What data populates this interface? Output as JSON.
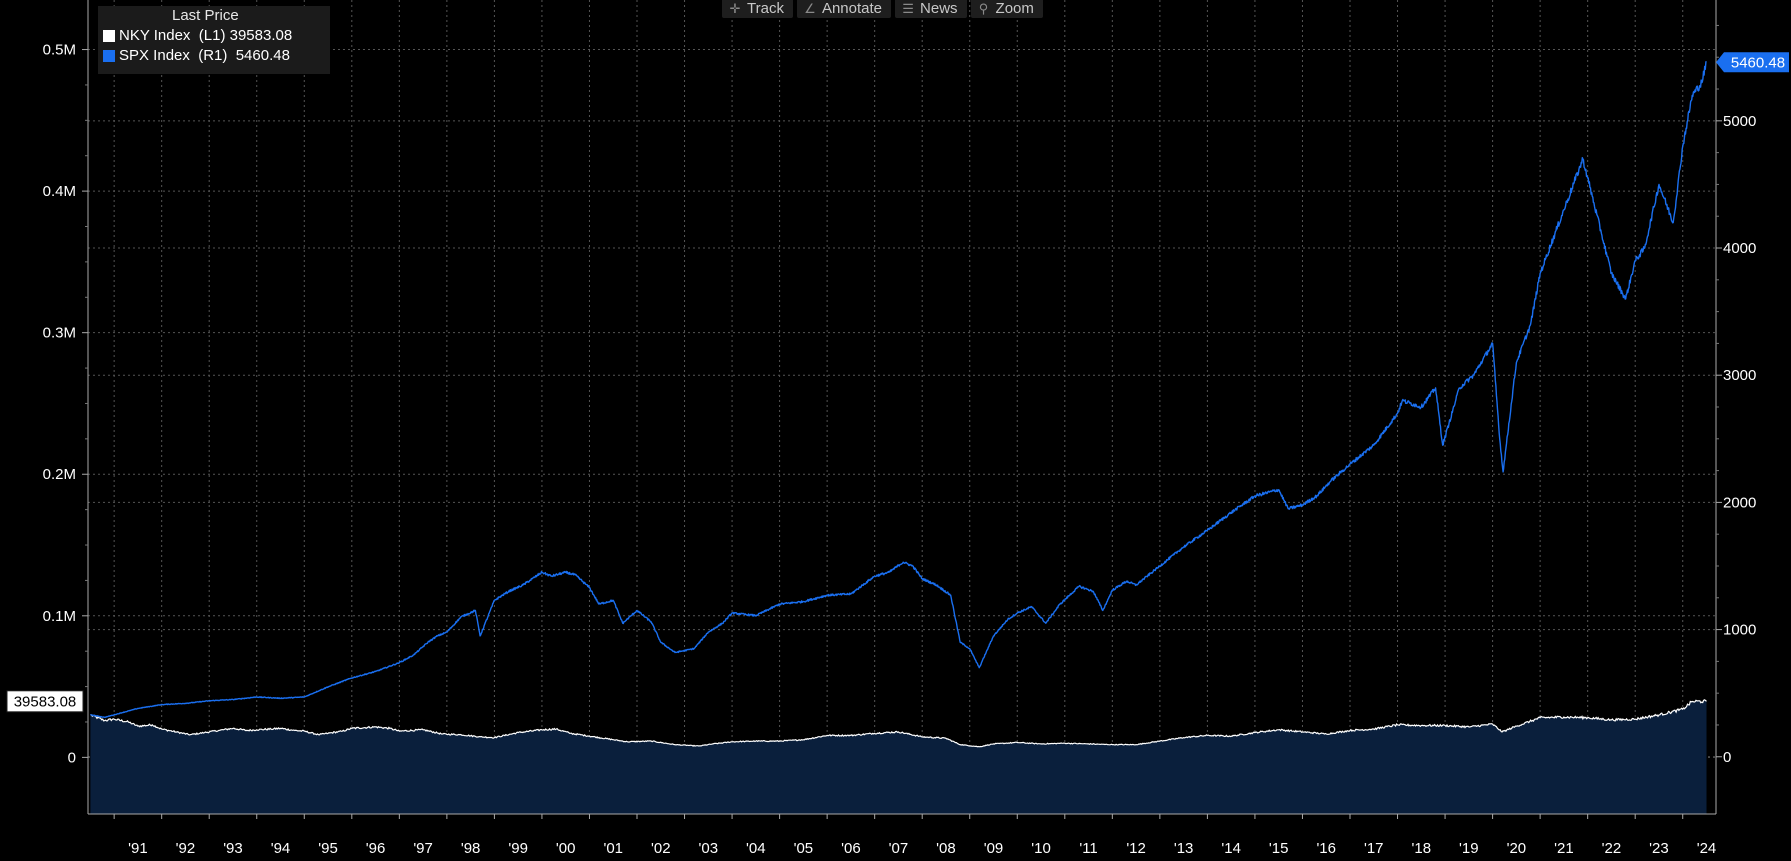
{
  "toolbar": {
    "items": [
      {
        "label": "Track",
        "icon": "crosshair-icon"
      },
      {
        "label": "Annotate",
        "icon": "pencil-icon"
      },
      {
        "label": "News",
        "icon": "news-icon"
      },
      {
        "label": "Zoom",
        "icon": "magnifier-icon"
      }
    ]
  },
  "legend": {
    "title": "Last Price",
    "entries": [
      {
        "label": "NKY Index  (L1) 39583.08",
        "color": "#ffffff"
      },
      {
        "label": "SPX Index  (R1)  5460.48",
        "color": "#1a6ff0"
      }
    ]
  },
  "colors": {
    "background": "#000000",
    "nky_line": "#ffffff",
    "nky_fill": "#0a1f3c",
    "spx_line": "#1a6ff0",
    "grid": "#555555"
  },
  "chart_data": {
    "type": "line",
    "x_axis": {
      "ticks": [
        "'91",
        "'92",
        "'93",
        "'94",
        "'95",
        "'96",
        "'97",
        "'98",
        "'99",
        "'00",
        "'01",
        "'02",
        "'03",
        "'04",
        "'05",
        "'06",
        "'07",
        "'08",
        "'09",
        "'10",
        "'11",
        "'12",
        "'13",
        "'14",
        "'15",
        "'16",
        "'17",
        "'18",
        "'19",
        "'20",
        "'21",
        "'22",
        "'23",
        "'24"
      ],
      "range": [
        1990.45,
        2024.7
      ]
    },
    "left_axis": {
      "ticks": [
        0,
        100000,
        200000,
        300000,
        400000,
        500000
      ],
      "tick_labels": [
        "0",
        "0.1M",
        "0.2M",
        "0.3M",
        "0.4M",
        "0.5M"
      ],
      "range": [
        -40000,
        535000
      ],
      "last_value_label": "39583.08",
      "last_value": 39583.08
    },
    "right_axis": {
      "ticks": [
        0,
        1000,
        2000,
        3000,
        4000,
        5000
      ],
      "tick_labels": [
        "0",
        "1000",
        "2000",
        "3000",
        "4000",
        "5000"
      ],
      "range": [
        -450,
        5950
      ],
      "last_value_label": "5460.48",
      "last_value": 5460.48
    },
    "grid": true,
    "legend_position": "top-left",
    "series": [
      {
        "name": "NKY Index (L1)",
        "axis": "left",
        "style": "area",
        "x": [
          1990.5,
          1990.8,
          1991.0,
          1991.3,
          1991.5,
          1991.8,
          1992.0,
          1992.3,
          1992.6,
          1992.9,
          1993.2,
          1993.5,
          1993.8,
          1994.0,
          1994.3,
          1994.5,
          1994.8,
          1995.0,
          1995.3,
          1995.5,
          1995.8,
          1996.0,
          1996.5,
          1996.8,
          1997.0,
          1997.5,
          1997.9,
          1998.3,
          1998.7,
          1999.0,
          1999.5,
          2000.0,
          2000.3,
          2000.6,
          2001.0,
          2001.5,
          2001.8,
          2002.3,
          2002.8,
          2003.3,
          2003.6,
          2004.0,
          2004.5,
          2005.0,
          2005.5,
          2006.0,
          2006.5,
          2007.0,
          2007.5,
          2008.0,
          2008.5,
          2008.8,
          2009.2,
          2009.5,
          2010.0,
          2010.5,
          2011.0,
          2011.5,
          2012.0,
          2012.5,
          2013.0,
          2013.5,
          2014.0,
          2014.5,
          2015.0,
          2015.5,
          2016.0,
          2016.5,
          2017.0,
          2017.5,
          2018.0,
          2018.5,
          2019.0,
          2019.5,
          2020.0,
          2020.2,
          2020.5,
          2021.0,
          2021.5,
          2022.0,
          2022.5,
          2023.0,
          2023.5,
          2024.0,
          2024.2,
          2024.5
        ],
        "values": [
          30000,
          26000,
          27000,
          25000,
          22000,
          23000,
          20000,
          18000,
          16000,
          17500,
          19000,
          20500,
          19000,
          19500,
          20000,
          20500,
          19000,
          18500,
          16000,
          17000,
          18500,
          20500,
          21500,
          20500,
          18500,
          19500,
          16500,
          16000,
          14500,
          14000,
          17500,
          19500,
          20000,
          17000,
          15000,
          12500,
          11000,
          11500,
          9000,
          8000,
          9500,
          11000,
          11500,
          11500,
          12500,
          15500,
          15500,
          17000,
          18000,
          14500,
          13500,
          9000,
          7500,
          9500,
          10500,
          9500,
          10000,
          9500,
          9000,
          9000,
          11500,
          14000,
          15500,
          15000,
          17500,
          19500,
          18000,
          16500,
          19000,
          20000,
          23000,
          22500,
          22500,
          21500,
          23500,
          18000,
          22000,
          28000,
          28500,
          28000,
          26500,
          27000,
          30000,
          34000,
          39500,
          39583.08
        ]
      },
      {
        "name": "SPX Index (R1)",
        "axis": "right",
        "style": "line",
        "x": [
          1990.5,
          1990.8,
          1991.0,
          1991.5,
          1992.0,
          1992.5,
          1993.0,
          1993.5,
          1994.0,
          1994.5,
          1995.0,
          1995.5,
          1996.0,
          1996.5,
          1997.0,
          1997.3,
          1997.6,
          1997.8,
          1998.0,
          1998.3,
          1998.6,
          1998.7,
          1999.0,
          1999.3,
          1999.6,
          1999.8,
          2000.0,
          2000.2,
          2000.5,
          2000.7,
          2001.0,
          2001.2,
          2001.5,
          2001.7,
          2002.0,
          2002.3,
          2002.5,
          2002.8,
          2003.2,
          2003.5,
          2003.8,
          2004.0,
          2004.5,
          2005.0,
          2005.5,
          2006.0,
          2006.5,
          2007.0,
          2007.3,
          2007.6,
          2007.8,
          2008.0,
          2008.3,
          2008.6,
          2008.8,
          2009.0,
          2009.2,
          2009.5,
          2009.8,
          2010.0,
          2010.3,
          2010.6,
          2010.9,
          2011.3,
          2011.6,
          2011.8,
          2012.0,
          2012.3,
          2012.5,
          2013.0,
          2013.5,
          2014.0,
          2014.5,
          2015.0,
          2015.5,
          2015.7,
          2016.0,
          2016.3,
          2016.6,
          2017.0,
          2017.5,
          2018.0,
          2018.1,
          2018.5,
          2018.8,
          2018.95,
          2019.3,
          2019.6,
          2020.0,
          2020.15,
          2020.22,
          2020.5,
          2020.8,
          2021.0,
          2021.5,
          2021.9,
          2022.0,
          2022.3,
          2022.5,
          2022.8,
          2023.0,
          2023.2,
          2023.5,
          2023.8,
          2024.0,
          2024.2,
          2024.4,
          2024.5
        ],
        "values": [
          330,
          310,
          330,
          380,
          410,
          420,
          440,
          450,
          470,
          460,
          470,
          550,
          620,
          670,
          740,
          800,
          900,
          950,
          980,
          1100,
          1150,
          950,
          1230,
          1300,
          1350,
          1400,
          1450,
          1420,
          1450,
          1430,
          1330,
          1200,
          1230,
          1050,
          1150,
          1060,
          900,
          820,
          850,
          980,
          1050,
          1130,
          1110,
          1200,
          1220,
          1270,
          1280,
          1420,
          1450,
          1530,
          1500,
          1400,
          1350,
          1270,
          900,
          850,
          700,
          950,
          1080,
          1130,
          1180,
          1050,
          1200,
          1340,
          1300,
          1150,
          1310,
          1380,
          1350,
          1500,
          1650,
          1780,
          1920,
          2050,
          2100,
          1950,
          1980,
          2050,
          2170,
          2300,
          2450,
          2700,
          2800,
          2750,
          2900,
          2450,
          2900,
          3000,
          3250,
          2500,
          2240,
          3100,
          3400,
          3800,
          4300,
          4700,
          4550,
          4100,
          3800,
          3600,
          3900,
          4000,
          4500,
          4200,
          4800,
          5200,
          5300,
          5460.48
        ]
      }
    ]
  }
}
